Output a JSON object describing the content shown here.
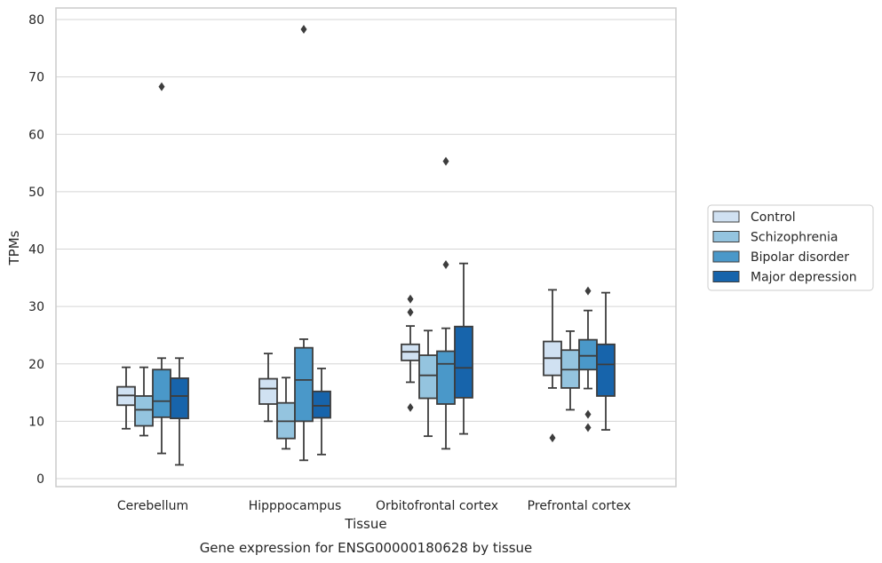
{
  "chart_data": {
    "type": "box",
    "xlabel": "Tissue",
    "ylabel": "TPMs",
    "caption": "Gene expression for ENSG00000180628 by tissue",
    "ylim": [
      -1,
      82
    ],
    "yticks": [
      0,
      10,
      20,
      30,
      40,
      50,
      60,
      70,
      80
    ],
    "grid": true,
    "legend_position": "right",
    "categories": [
      "Cerebellum",
      "Hipppocampus",
      "Orbitofrontal cortex",
      "Prefrontal cortex"
    ],
    "series": [
      {
        "name": "Control",
        "color": "#d0e1f2",
        "boxes": [
          {
            "whislo": 8.7,
            "q1": 12.8,
            "med": 14.5,
            "q3": 16.0,
            "whishi": 19.4,
            "fliers": []
          },
          {
            "whislo": 10.0,
            "q1": 13.0,
            "med": 15.7,
            "q3": 17.4,
            "whishi": 21.8,
            "fliers": []
          },
          {
            "whislo": 16.8,
            "q1": 20.6,
            "med": 22.1,
            "q3": 23.4,
            "whishi": 26.6,
            "fliers": [
              12.4,
              29.0,
              31.3
            ]
          },
          {
            "whislo": 15.8,
            "q1": 18.0,
            "med": 21.0,
            "q3": 23.9,
            "whishi": 32.9,
            "fliers": [
              7.1
            ]
          }
        ]
      },
      {
        "name": "Schizophrenia",
        "color": "#94c4df",
        "boxes": [
          {
            "whislo": 7.5,
            "q1": 9.2,
            "med": 12.0,
            "q3": 14.4,
            "whishi": 19.4,
            "fliers": []
          },
          {
            "whislo": 5.2,
            "q1": 7.0,
            "med": 10.0,
            "q3": 13.2,
            "whishi": 17.6,
            "fliers": []
          },
          {
            "whislo": 7.4,
            "q1": 14.0,
            "med": 18.0,
            "q3": 21.5,
            "whishi": 25.8,
            "fliers": []
          },
          {
            "whislo": 12.0,
            "q1": 15.8,
            "med": 19.0,
            "q3": 22.4,
            "whishi": 25.7,
            "fliers": []
          }
        ]
      },
      {
        "name": "Bipolar disorder",
        "color": "#4a98c9",
        "boxes": [
          {
            "whislo": 4.4,
            "q1": 10.7,
            "med": 13.5,
            "q3": 19.0,
            "whishi": 21.0,
            "fliers": [
              68.3
            ]
          },
          {
            "whislo": 3.2,
            "q1": 10.0,
            "med": 17.2,
            "q3": 22.8,
            "whishi": 24.3,
            "fliers": [
              78.3
            ]
          },
          {
            "whislo": 5.2,
            "q1": 13.0,
            "med": 20.0,
            "q3": 22.2,
            "whishi": 26.2,
            "fliers": [
              37.3,
              55.3
            ]
          },
          {
            "whislo": 15.7,
            "q1": 19.0,
            "med": 21.4,
            "q3": 24.2,
            "whishi": 29.3,
            "fliers": [
              8.9,
              11.2,
              32.7
            ]
          }
        ]
      },
      {
        "name": "Major depression",
        "color": "#1764ab",
        "boxes": [
          {
            "whislo": 2.4,
            "q1": 10.5,
            "med": 14.4,
            "q3": 17.5,
            "whishi": 21.0,
            "fliers": []
          },
          {
            "whislo": 4.2,
            "q1": 10.6,
            "med": 12.7,
            "q3": 15.2,
            "whishi": 19.2,
            "fliers": []
          },
          {
            "whislo": 7.8,
            "q1": 14.1,
            "med": 19.3,
            "q3": 26.5,
            "whishi": 37.5,
            "fliers": []
          },
          {
            "whislo": 8.5,
            "q1": 14.4,
            "med": 19.9,
            "q3": 23.4,
            "whishi": 32.4,
            "fliers": []
          }
        ]
      }
    ]
  }
}
